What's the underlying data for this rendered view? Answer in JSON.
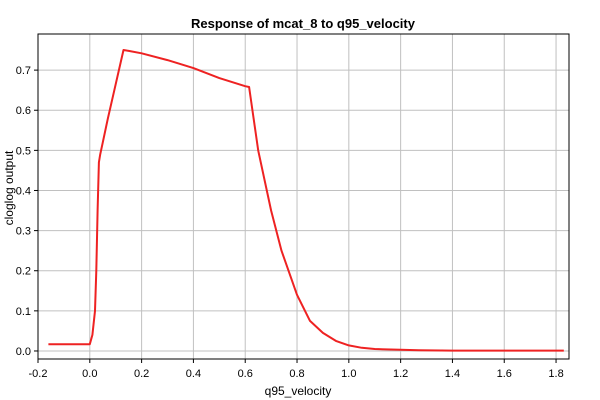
{
  "chart_data": {
    "type": "line",
    "title": "Response of mcat_8 to q95_velocity",
    "xlabel": "q95_velocity",
    "ylabel": "cloglog output",
    "xlim": [
      -0.2,
      1.85
    ],
    "ylim": [
      -0.02,
      0.79
    ],
    "x_ticks": [
      -0.2,
      0.0,
      0.2,
      0.4,
      0.6,
      0.8,
      1.0,
      1.2,
      1.4,
      1.6,
      1.8
    ],
    "x_tick_labels": [
      "-0.2",
      "0.0",
      "0.2",
      "0.4",
      "0.6",
      "0.8",
      "1.0",
      "1.2",
      "1.4",
      "1.6",
      "1.8"
    ],
    "y_ticks": [
      0.0,
      0.1,
      0.2,
      0.3,
      0.4,
      0.5,
      0.6,
      0.7
    ],
    "y_tick_labels": [
      "0.0",
      "0.1",
      "0.2",
      "0.3",
      "0.4",
      "0.5",
      "0.6",
      "0.7"
    ],
    "grid": true,
    "colors": {
      "line": "#ee2222",
      "grid": "#c0c0c0",
      "axis": "#000000"
    },
    "series": [
      {
        "x": [
          -0.16,
          -0.05,
          0.0,
          0.01,
          0.02,
          0.025,
          0.03,
          0.035,
          0.04,
          0.05,
          0.07,
          0.1,
          0.13,
          0.15,
          0.2,
          0.3,
          0.4,
          0.5,
          0.6,
          0.615,
          0.65,
          0.7,
          0.74,
          0.8,
          0.85,
          0.9,
          0.95,
          1.0,
          1.05,
          1.1,
          1.2,
          1.27,
          1.4,
          1.6,
          1.8,
          1.83
        ],
        "y": [
          0.017,
          0.017,
          0.017,
          0.04,
          0.1,
          0.2,
          0.35,
          0.47,
          0.49,
          0.52,
          0.58,
          0.665,
          0.75,
          0.748,
          0.742,
          0.725,
          0.705,
          0.68,
          0.66,
          0.658,
          0.5,
          0.35,
          0.25,
          0.14,
          0.075,
          0.045,
          0.025,
          0.014,
          0.008,
          0.005,
          0.003,
          0.002,
          0.001,
          0.001,
          0.001,
          0.001
        ]
      }
    ]
  }
}
